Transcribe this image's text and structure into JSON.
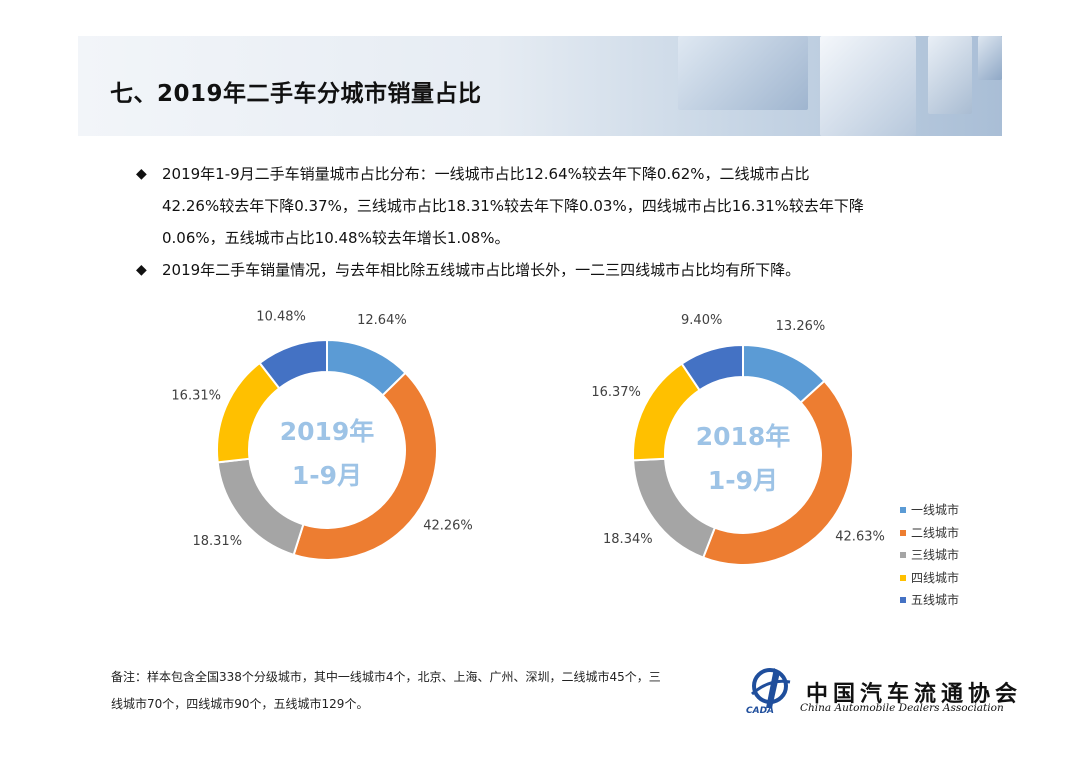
{
  "header": {
    "title": "七、2019年二手车分城市销量占比"
  },
  "bullets": [
    {
      "lines": [
        "2019年1-9月二手车销量城市占比分布：一线城市占比12.64%较去年下降0.62%，二线城市占比",
        "42.26%较去年下降0.37%，三线城市占比18.31%较去年下降0.03%，四线城市占比16.31%较去年下降",
        "0.06%，五线城市占比10.48%较去年增长1.08%。"
      ]
    },
    {
      "lines": [
        "2019年二手车销量情况，与去年相比除五线城市占比增长外，一二三四线城市占比均有所下降。"
      ]
    }
  ],
  "bullet_mark": "◆",
  "chart_data": [
    {
      "type": "pie",
      "variant": "donut",
      "center_label": [
        "2019年",
        "1-9月"
      ],
      "categories": [
        "一线城市",
        "二线城市",
        "三线城市",
        "四线城市",
        "五线城市"
      ],
      "values": [
        12.64,
        42.26,
        18.31,
        16.31,
        10.48
      ],
      "value_labels": [
        "12.64%",
        "42.26%",
        "18.31%",
        "16.31%",
        "10.48%"
      ],
      "colors": [
        "#5b9bd5",
        "#ed7d31",
        "#a5a5a5",
        "#ffc000",
        "#4472c4"
      ],
      "legend_position": "none"
    },
    {
      "type": "pie",
      "variant": "donut",
      "center_label": [
        "2018年",
        "1-9月"
      ],
      "categories": [
        "一线城市",
        "二线城市",
        "三线城市",
        "四线城市",
        "五线城市"
      ],
      "values": [
        13.26,
        42.63,
        18.34,
        16.37,
        9.4
      ],
      "value_labels": [
        "13.26%",
        "42.63%",
        "18.34%",
        "16.37%",
        "9.40%"
      ],
      "colors": [
        "#5b9bd5",
        "#ed7d31",
        "#a5a5a5",
        "#ffc000",
        "#4472c4"
      ],
      "legend_position": "right"
    }
  ],
  "legend": {
    "items": [
      {
        "label": "一线城市",
        "color": "#5b9bd5"
      },
      {
        "label": "二线城市",
        "color": "#ed7d31"
      },
      {
        "label": "三线城市",
        "color": "#a5a5a5"
      },
      {
        "label": "四线城市",
        "color": "#ffc000"
      },
      {
        "label": "五线城市",
        "color": "#4472c4"
      }
    ]
  },
  "footnote": {
    "lines": [
      "备注：样本包含全国338个分级城市，其中一线城市4个，北京、上海、广州、深圳，二线城市45个，三",
      "线城市70个，四线城市90个，五线城市129个。"
    ]
  },
  "logo": {
    "name_cn": "中国汽车流通协会",
    "name_en": "China Automobile Dealers Association",
    "abbr": "CADA"
  }
}
